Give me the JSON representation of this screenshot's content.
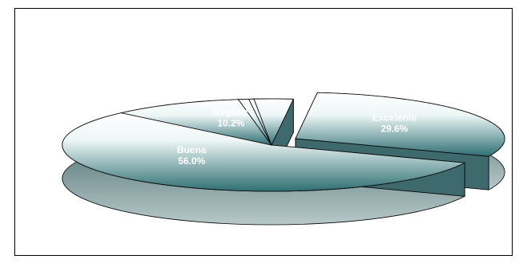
{
  "chart_data": {
    "type": "pie",
    "title": "",
    "slices": [
      {
        "label": "Excelente",
        "value": 29.6,
        "value_text": "29.6%",
        "exploded": true
      },
      {
        "label": "Buena",
        "value": 56.0,
        "value_text": "56.0%",
        "exploded": false
      },
      {
        "label": "Regular",
        "value": 10.2,
        "value_text": "10.2%",
        "exploded": false
      },
      {
        "label": "",
        "value": 0.8,
        "value_text": "",
        "exploded": false
      },
      {
        "label": "",
        "value": 0.4,
        "value_text": "",
        "exploded": false
      },
      {
        "label": "",
        "value": 3.0,
        "value_text": "",
        "exploded": false
      }
    ],
    "style": "3d-exploded",
    "colors": {
      "top_light": "#ffffff",
      "top_dark": "#2e6f73",
      "side": "#4d7275",
      "edge": "#000000"
    }
  }
}
